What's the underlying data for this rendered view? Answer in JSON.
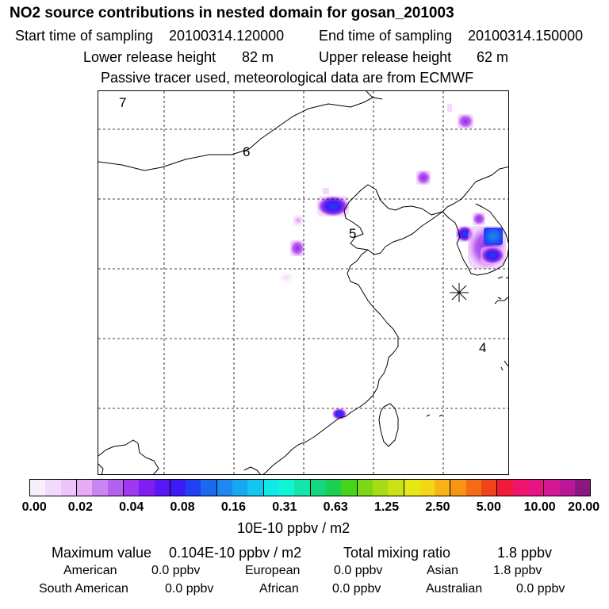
{
  "title": "NO2 source contributions in nested domain for gosan_201003",
  "start_label": "Start time of sampling",
  "start_value": "20100314.120000",
  "end_label": "End time of sampling",
  "end_value": "20100314.150000",
  "lower_label": "Lower release height",
  "lower_value": "82 m",
  "upper_label": "Upper release height",
  "upper_value": "62 m",
  "note": "Passive tracer used, meteorological data are from ECMWF",
  "map": {
    "region_labels": [
      "7",
      "6",
      "5",
      "4"
    ]
  },
  "colorbar": {
    "ticks": [
      "0.00",
      "0.02",
      "0.04",
      "0.08",
      "0.16",
      "0.31",
      "0.63",
      "1.25",
      "2.50",
      "5.00",
      "10.00",
      "20.00"
    ],
    "colors": [
      "#f9eefc",
      "#f3d9fb",
      "#eec5fa",
      "#e9aaf6",
      "#c985f2",
      "#b660f0",
      "#a137ee",
      "#7f1ef0",
      "#5b16f4",
      "#3c1cf5",
      "#2040f2",
      "#1a6af0",
      "#1f88f0",
      "#16a8f0",
      "#12c6ef",
      "#12e7ea",
      "#10f5d6",
      "#12e6a8",
      "#14d67c",
      "#1ad050",
      "#46d41a",
      "#7cd817",
      "#a5dc16",
      "#cbe316",
      "#e6e816",
      "#f4d716",
      "#f7b414",
      "#f79414",
      "#f46c16",
      "#f2441a",
      "#f21a3a",
      "#f0146e",
      "#e81484",
      "#d41896",
      "#b81896",
      "#8a1880"
    ],
    "units": "10E-10 ppbv / m2"
  },
  "summary": {
    "max_label": "Maximum value",
    "max_value": "0.104E-10 ppbv / m2",
    "total_label": "Total mixing ratio",
    "total_value": "1.8 ppbv"
  },
  "contributions": [
    {
      "name": "American",
      "value": "0.0 ppbv"
    },
    {
      "name": "European",
      "value": "0.0 ppbv"
    },
    {
      "name": "Asian",
      "value": "1.8 ppbv"
    },
    {
      "name": "South American",
      "value": "0.0 ppbv"
    },
    {
      "name": "African",
      "value": "0.0 ppbv"
    },
    {
      "name": "Australian",
      "value": "0.0 ppbv"
    }
  ]
}
